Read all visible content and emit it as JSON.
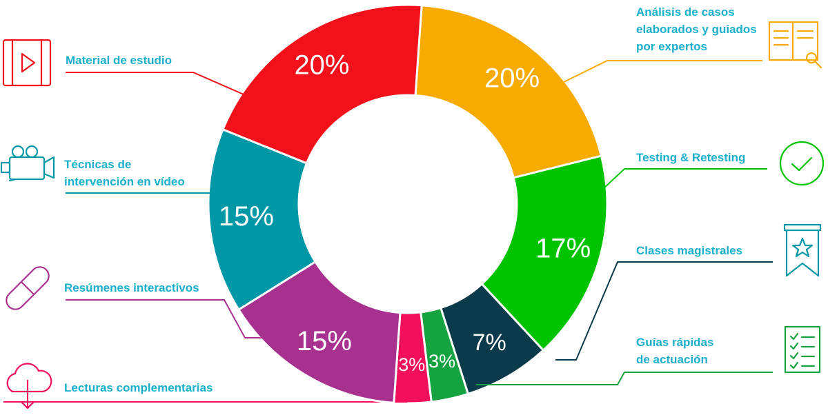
{
  "chart_data": {
    "type": "pie",
    "categories": [
      "Análisis de casos\nelaborados y guiados\npor expertos",
      "Testing & Retesting",
      "Clases magistrales",
      "Guías rápidas\nde actuación",
      "Lecturas complementarias",
      "Resúmenes interactivos",
      "Técnicas de\nintervención en vídeo",
      "Material de estudio"
    ],
    "values": [
      20,
      17,
      7,
      3,
      3,
      15,
      15,
      20
    ],
    "value_labels": [
      "20%",
      "17%",
      "7%",
      "3%",
      "3%",
      "15%",
      "15%",
      "20%"
    ],
    "colors": [
      "#F7AA00",
      "#00C300",
      "#0B3A4A",
      "#15A240",
      "#F20F5B",
      "#A8318F",
      "#0097A7",
      "#F2101A"
    ]
  }
}
